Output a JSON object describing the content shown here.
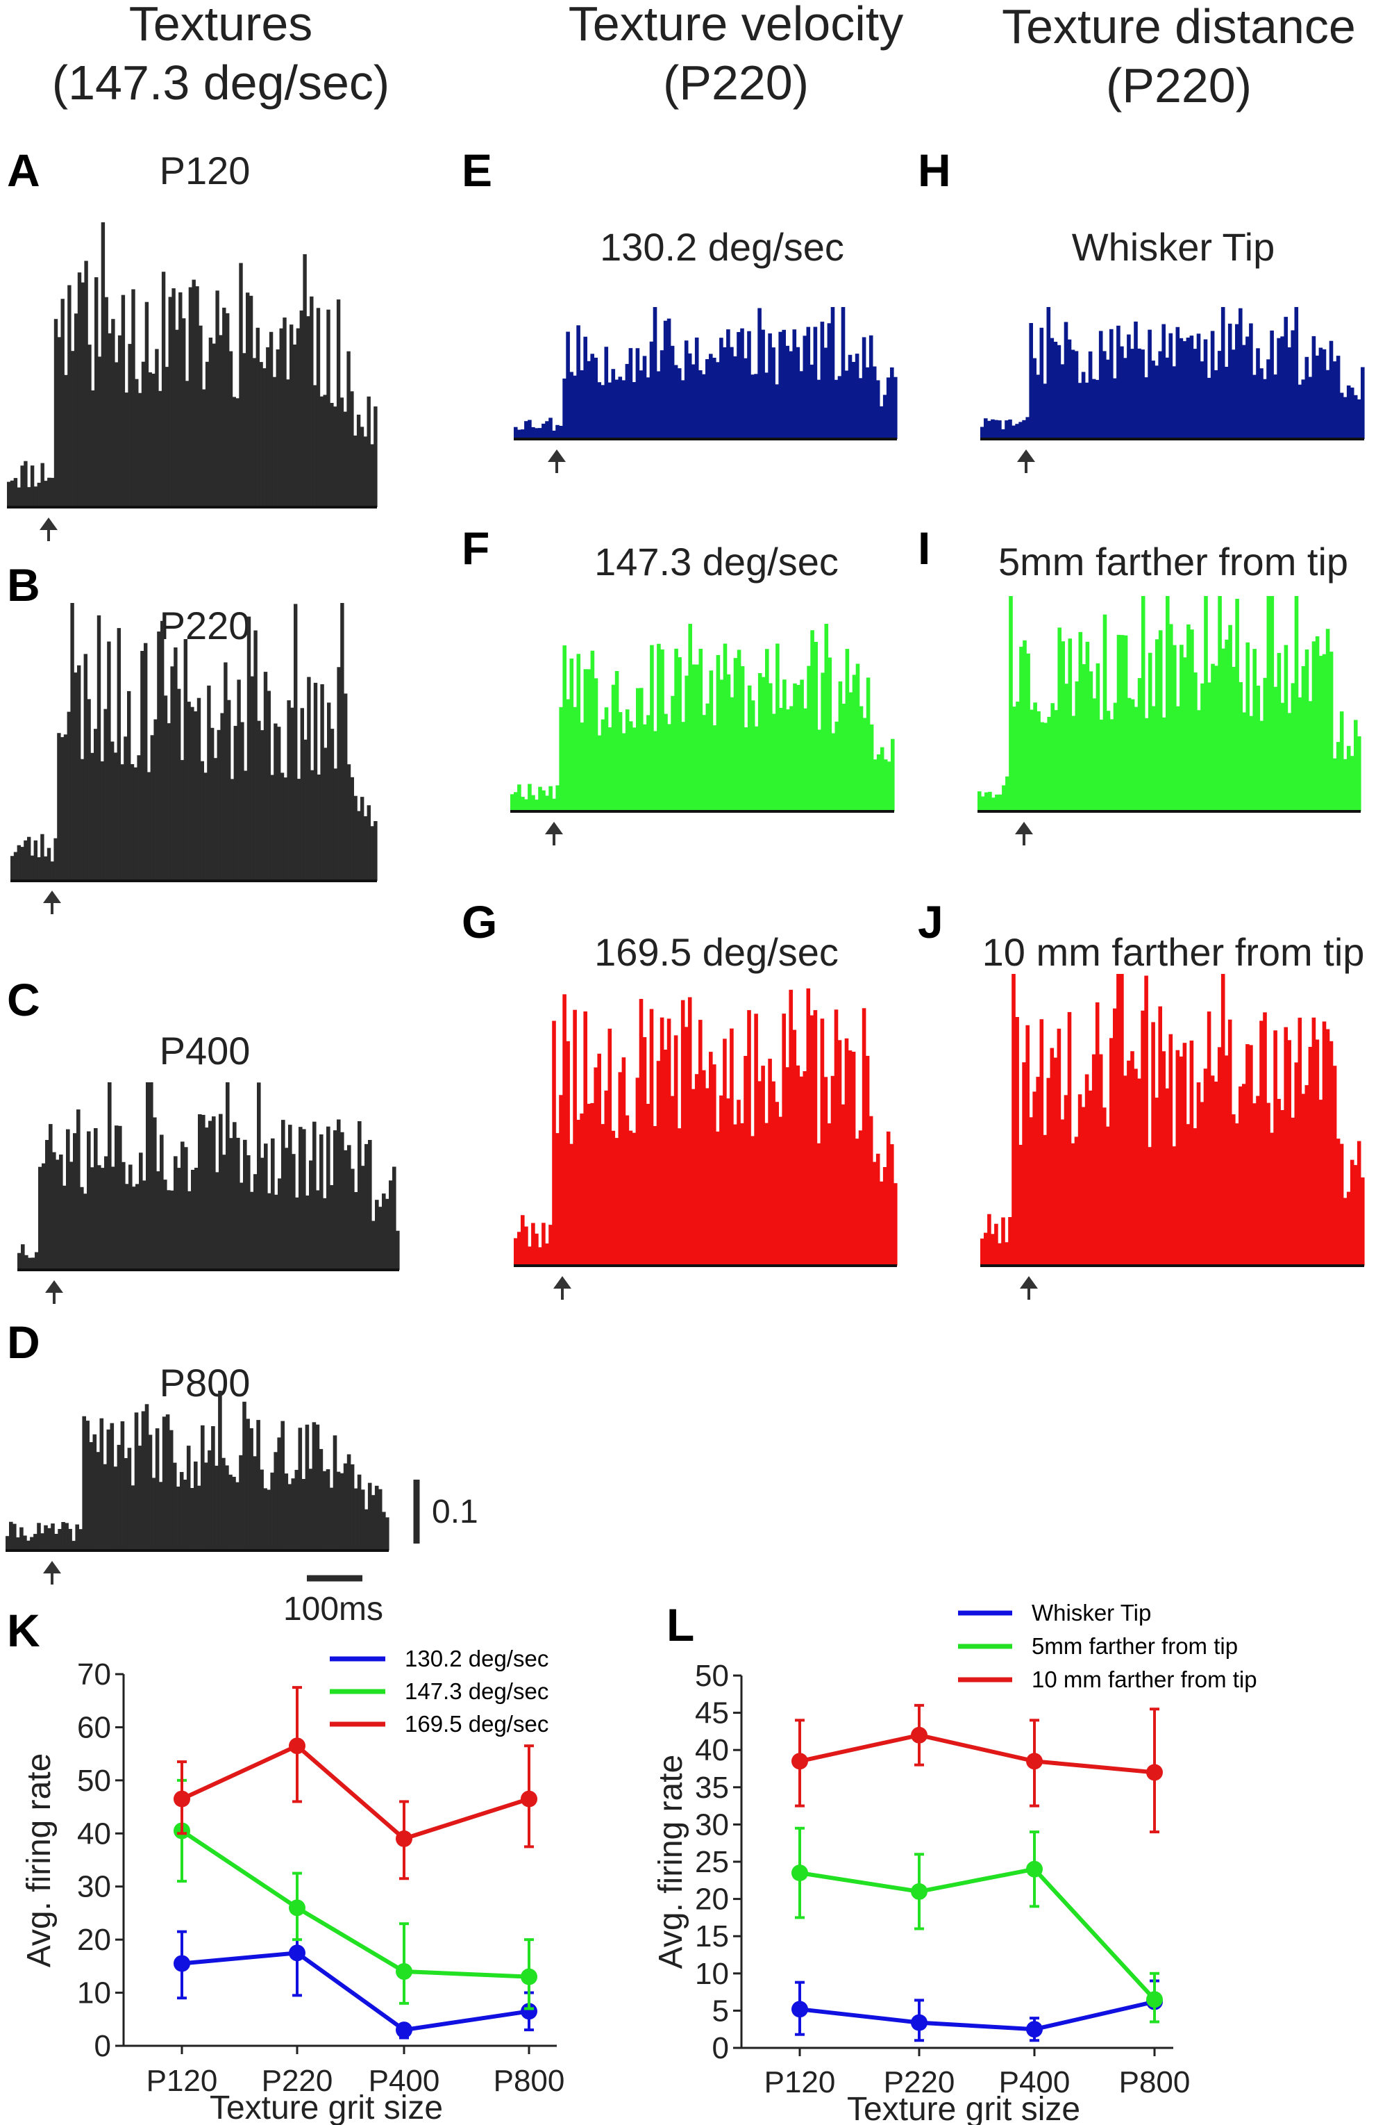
{
  "colors": {
    "dark": "#2b2b2b",
    "blue": "#0a1a8c",
    "green": "#2ef52e",
    "red": "#f01010",
    "line_blue": "#1010e0",
    "line_green": "#22e022",
    "line_red": "#e01818"
  },
  "column_titles": {
    "textures": [
      "Textures",
      "(147.3 deg/sec)"
    ],
    "velocity": [
      "Texture velocity",
      "(P220)"
    ],
    "distance": [
      "Texture distance",
      "(P220)"
    ]
  },
  "panels": {
    "A": {
      "letter": "A",
      "label": "P120"
    },
    "B": {
      "letter": "B",
      "label": "P220"
    },
    "C": {
      "letter": "C",
      "label": "P400"
    },
    "D": {
      "letter": "D",
      "label": "P800"
    },
    "E": {
      "letter": "E",
      "label": "130.2 deg/sec"
    },
    "F": {
      "letter": "F",
      "label": "147.3 deg/sec"
    },
    "G": {
      "letter": "G",
      "label": "169.5 deg/sec"
    },
    "H": {
      "letter": "H",
      "label": "Whisker Tip"
    },
    "I": {
      "letter": "I",
      "label": "5mm farther from tip"
    },
    "J": {
      "letter": "J",
      "label": "10 mm farther from tip"
    },
    "K": {
      "letter": "K"
    },
    "L": {
      "letter": "L"
    }
  },
  "scale_bar": {
    "vertical_label": "0.1",
    "horizontal_label": "100ms"
  },
  "chart_data": [
    {
      "id": "K",
      "type": "line",
      "categories": [
        "P120",
        "P220",
        "P400",
        "P800"
      ],
      "xlabel": "Texture grit size",
      "ylabel": "Avg. firing rate",
      "ylim": [
        0,
        70
      ],
      "yticks": [
        0,
        10,
        20,
        30,
        40,
        50,
        60,
        70
      ],
      "legend_position": "top-right",
      "series": [
        {
          "name": "130.2 deg/sec",
          "color": "#1010e0",
          "values": [
            15.5,
            17.5,
            3,
            6.5
          ],
          "err_low": [
            9,
            9.5,
            1.5,
            3
          ],
          "err_high": [
            21.5,
            25,
            4,
            10
          ]
        },
        {
          "name": "147.3 deg/sec",
          "color": "#22e022",
          "values": [
            40.5,
            26,
            14,
            13
          ],
          "err_low": [
            31,
            20,
            8,
            7
          ],
          "err_high": [
            50,
            32.5,
            23,
            20
          ]
        },
        {
          "name": "169.5 deg/sec",
          "color": "#e01818",
          "values": [
            46.5,
            56.5,
            39,
            46.5
          ],
          "err_low": [
            40,
            46,
            31.5,
            37.5
          ],
          "err_high": [
            53.5,
            67.5,
            46,
            56.5
          ]
        }
      ]
    },
    {
      "id": "L",
      "type": "line",
      "categories": [
        "P120",
        "P220",
        "P400",
        "P800"
      ],
      "xlabel": "Texture grit size",
      "ylabel": "Avg. firing rate",
      "ylim": [
        0,
        50
      ],
      "yticks": [
        0,
        5,
        10,
        15,
        20,
        25,
        30,
        35,
        40,
        45,
        50
      ],
      "legend_position": "top-right",
      "series": [
        {
          "name": "Whisker Tip",
          "color": "#1010e0",
          "values": [
            5.2,
            3.4,
            2.5,
            6.2
          ],
          "err_low": [
            1.8,
            1,
            1,
            3.5
          ],
          "err_high": [
            8.8,
            6.4,
            4,
            9
          ]
        },
        {
          "name": "5mm farther from tip",
          "color": "#22e022",
          "values": [
            23.5,
            21,
            24,
            6.5
          ],
          "err_low": [
            17.5,
            16,
            19,
            3.5
          ],
          "err_high": [
            29.5,
            26,
            29,
            10
          ]
        },
        {
          "name": "10 mm farther from tip",
          "color": "#e01818",
          "values": [
            38.5,
            42,
            38.5,
            37
          ],
          "err_low": [
            32.5,
            38,
            32.5,
            29
          ],
          "err_high": [
            44,
            46,
            44,
            45.5
          ]
        }
      ]
    }
  ]
}
